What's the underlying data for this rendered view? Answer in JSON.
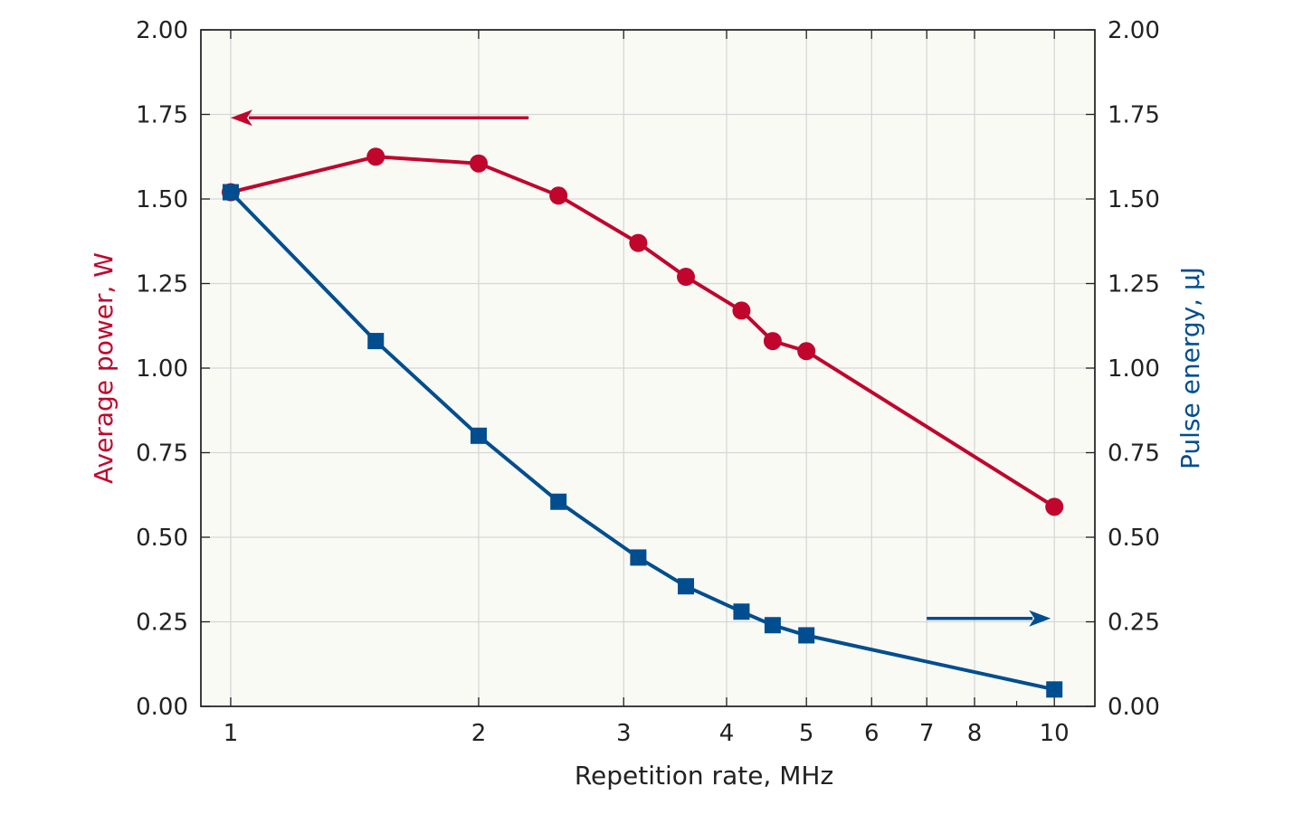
{
  "chart_data": {
    "type": "line",
    "xlabel": "Repetition rate, MHz",
    "ylabel_left": "Average power, W",
    "ylabel_right": "Pulse energy, µJ",
    "x_scale": "log",
    "xlim": [
      0.92,
      11.2
    ],
    "ylim_left": [
      0,
      2
    ],
    "ylim_right": [
      0,
      2
    ],
    "x_ticks": [
      1,
      2,
      3,
      4,
      5,
      6,
      7,
      8,
      10
    ],
    "x_tick_labels": [
      "1",
      "2",
      "3",
      "4",
      "5",
      "6",
      "7",
      "8",
      "10"
    ],
    "y_ticks": [
      0,
      0.25,
      0.5,
      0.75,
      1,
      1.25,
      1.5,
      1.75,
      2
    ],
    "y_tick_labels": [
      "0.00",
      "0.25",
      "0.50",
      "0.75",
      "1.00",
      "1.25",
      "1.50",
      "1.75",
      "2.00"
    ],
    "grid": true,
    "colors": {
      "power": "#c0062d",
      "energy": "#004e8f",
      "plot_bg": "#fafaf5",
      "grid": "#d6d6d6"
    },
    "series": [
      {
        "axis": "left",
        "marker": "circle",
        "color": "#c0062d",
        "x": [
          1.0,
          1.5,
          2.0,
          2.5,
          3.125,
          3.57,
          4.17,
          4.55,
          5.0,
          10.0
        ],
        "y": [
          1.52,
          1.625,
          1.605,
          1.51,
          1.37,
          1.27,
          1.17,
          1.08,
          1.05,
          0.59
        ]
      },
      {
        "axis": "right",
        "marker": "square",
        "color": "#004e8f",
        "x": [
          1.0,
          1.5,
          2.0,
          2.5,
          3.125,
          3.57,
          4.17,
          4.55,
          5.0,
          10.0
        ],
        "y": [
          1.52,
          1.08,
          0.8,
          0.605,
          0.44,
          0.355,
          0.28,
          0.24,
          0.21,
          0.05
        ]
      }
    ],
    "annotations": [
      {
        "type": "arrow",
        "direction": "left",
        "series": "power",
        "y": 1.74,
        "x_from": 2.3,
        "x_to": 1.0
      },
      {
        "type": "arrow",
        "direction": "right",
        "series": "energy",
        "y": 0.26,
        "x_from": 7.0,
        "x_to": 10.0
      }
    ]
  }
}
